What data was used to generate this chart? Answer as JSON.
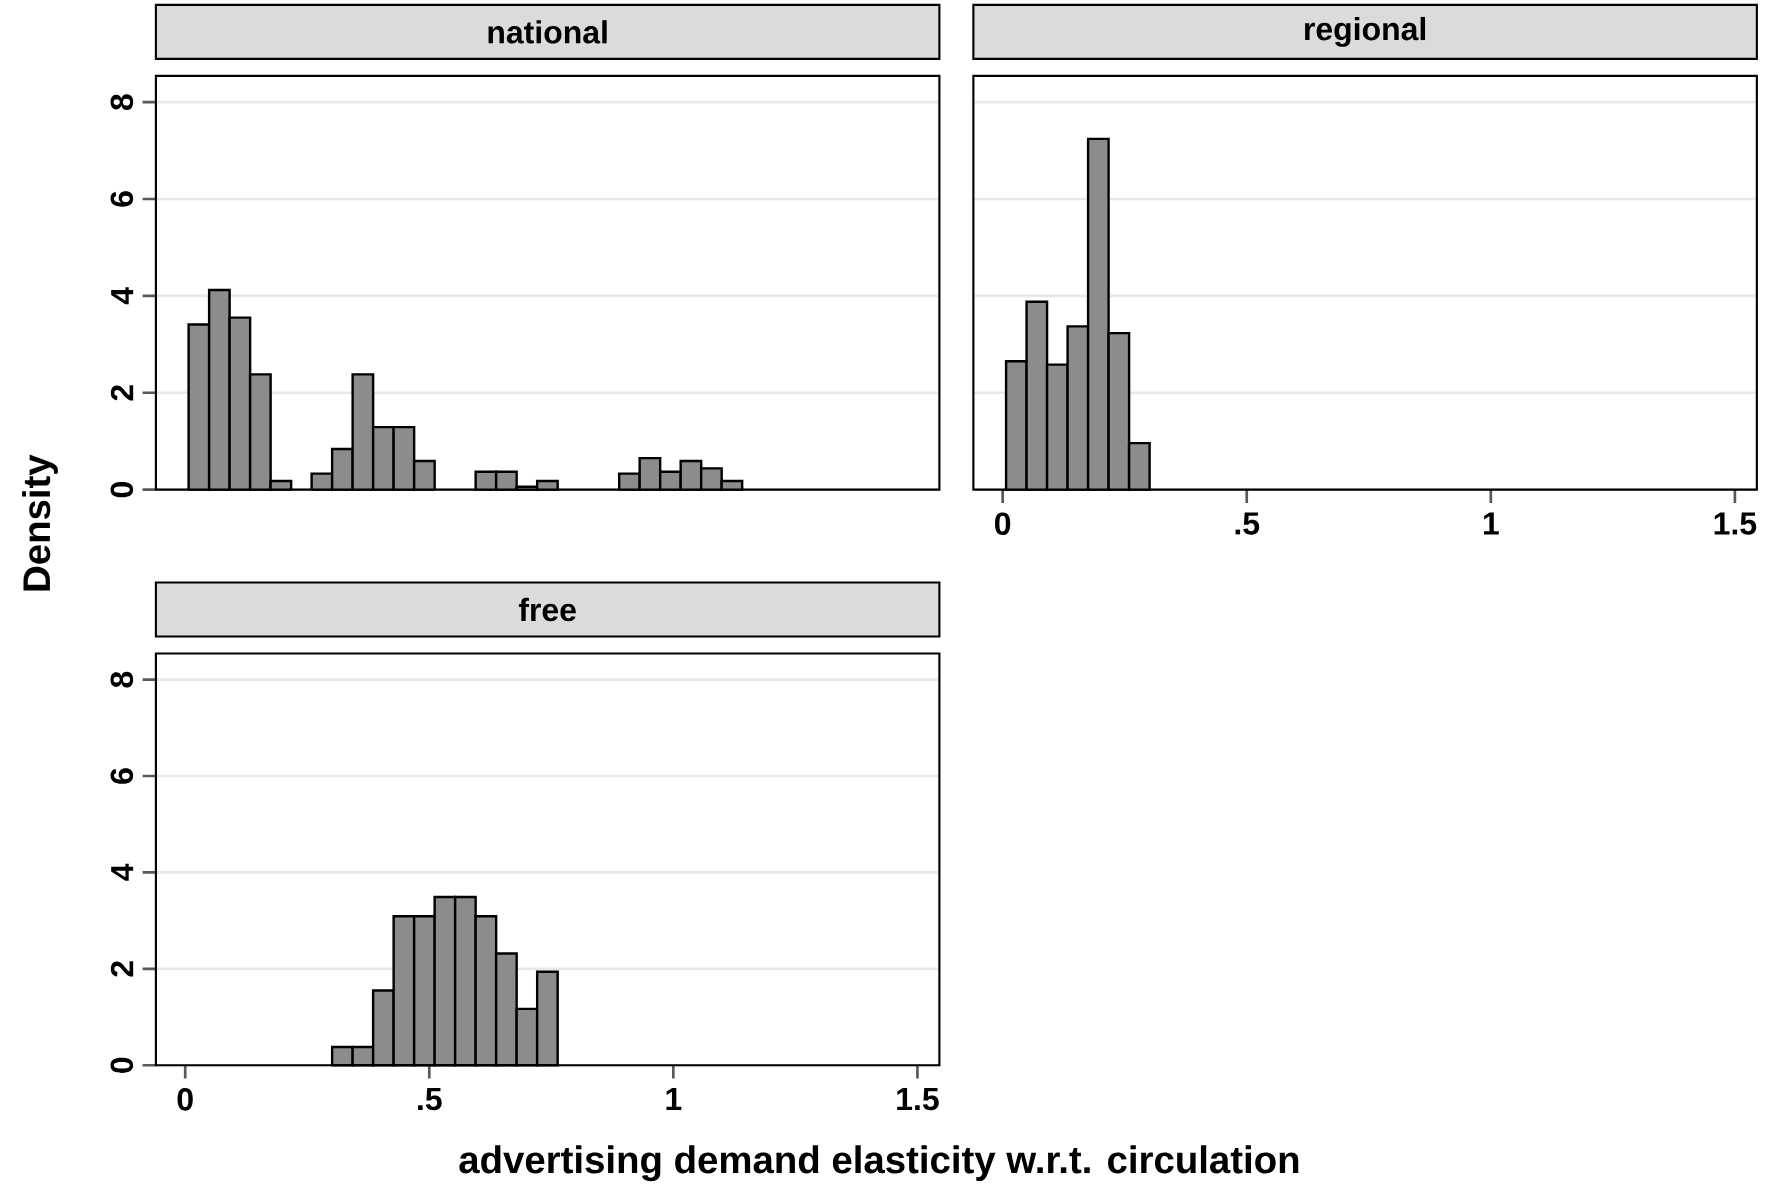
{
  "chart_data": [
    {
      "type": "histogram",
      "title": "national",
      "ylabel": "Density",
      "color": "#8c8c8c",
      "bins": [
        0.007,
        0.049,
        0.091,
        0.133,
        0.175,
        0.217,
        0.259,
        0.301,
        0.343,
        0.385,
        0.427,
        0.469,
        0.511,
        0.553,
        0.595,
        0.637,
        0.679,
        0.721,
        0.763,
        0.805,
        0.847,
        0.889,
        0.931,
        0.973,
        1.015,
        1.057,
        1.099,
        1.141
      ],
      "values": [
        3.41,
        4.12,
        3.55,
        2.38,
        0.18,
        0,
        0.33,
        0.84,
        2.38,
        1.29,
        1.29,
        0.59,
        0,
        0,
        0.37,
        0.37,
        0.06,
        0.18,
        0,
        0,
        0,
        0.33,
        0.65,
        0.37,
        0.59,
        0.44,
        0.18
      ],
      "xlim": [
        -0.06,
        1.545
      ],
      "ylim": [
        0,
        8.54
      ],
      "yticks": [
        0,
        2,
        4,
        6,
        8
      ],
      "grid": "y",
      "tick_labels": "y"
    },
    {
      "type": "histogram",
      "title": "regional",
      "color": "#8c8c8c",
      "bins": [
        0.007,
        0.049,
        0.091,
        0.133,
        0.175,
        0.217,
        0.259,
        0.301
      ],
      "values": [
        2.65,
        3.88,
        2.58,
        3.37,
        7.24,
        3.23,
        0.96
      ],
      "xlim": [
        -0.06,
        1.545
      ],
      "ylim": [
        0,
        8.54
      ],
      "xticks": [
        0,
        {
          "value": 0.5,
          "label": ".5"
        },
        1,
        1.5
      ],
      "yticks": [
        0,
        2,
        4,
        6,
        8
      ],
      "grid": "y",
      "tick_labels": "x"
    },
    {
      "type": "histogram",
      "title": "free",
      "xlabel": "advertising demand elasticity w.r.t. circulation",
      "color": "#8c8c8c",
      "bins": [
        0.301,
        0.343,
        0.385,
        0.427,
        0.469,
        0.511,
        0.553,
        0.595,
        0.637,
        0.679,
        0.721,
        0.763
      ],
      "values": [
        0.38,
        0.38,
        1.55,
        3.09,
        3.09,
        3.49,
        3.49,
        3.09,
        2.32,
        1.17,
        1.94
      ],
      "xlim": [
        -0.06,
        1.545
      ],
      "ylim": [
        0,
        8.54
      ],
      "xticks": [
        0,
        {
          "value": 0.5,
          "label": ".5"
        },
        1,
        1.5
      ],
      "yticks": [
        0,
        2,
        4,
        6,
        8
      ],
      "grid": "y"
    }
  ]
}
